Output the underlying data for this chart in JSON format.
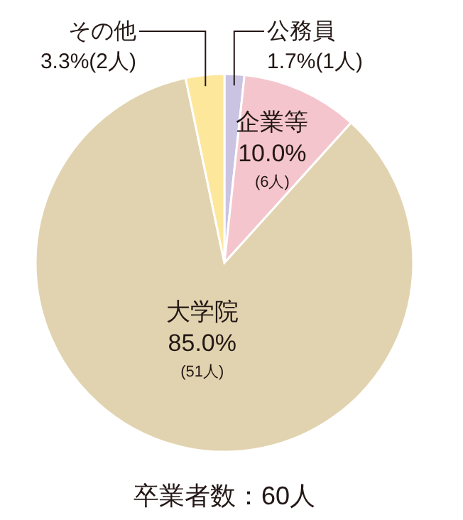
{
  "chart_data": {
    "type": "pie",
    "title": "卒業者数：60人",
    "categories": [
      "公務員",
      "企業等",
      "大学院",
      "その他"
    ],
    "values": [
      1.7,
      10.0,
      85.0,
      3.3
    ],
    "value_labels": [
      "1.7%(1人)",
      "10.0%\n(6人)",
      "85.0%\n(51人)",
      "3.3%(2人)"
    ],
    "colors": [
      "#cbc3e2",
      "#f5c5cd",
      "#e1d3af",
      "#fde79b"
    ]
  }
}
